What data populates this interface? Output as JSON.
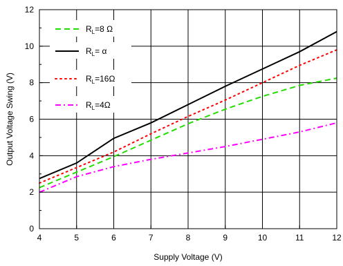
{
  "chart_data": {
    "type": "line",
    "xlabel": "Supply Voltage (V)",
    "ylabel": "Output Voltage Swing (V)",
    "xlim": [
      4,
      12
    ],
    "ylim": [
      0,
      12
    ],
    "xticks": [
      4,
      5,
      6,
      7,
      8,
      9,
      10,
      11,
      12
    ],
    "yticks": [
      0,
      2,
      4,
      6,
      8,
      10,
      12
    ],
    "grid": true,
    "legend_position": "top-left",
    "series": [
      {
        "name": "R_L=8 Ω",
        "label_prefix": "R",
        "label_sub": "L",
        "label_suffix": "=8 Ω",
        "color": "#22dd00",
        "dash": "dashed",
        "x": [
          4,
          5,
          6,
          7,
          8,
          9,
          10,
          11,
          12
        ],
        "y": [
          2.25,
          3.1,
          3.95,
          4.85,
          5.75,
          6.55,
          7.25,
          7.85,
          8.25
        ]
      },
      {
        "name": "R_L= α",
        "label_prefix": "R",
        "label_sub": "L",
        "label_suffix": "= α",
        "color": "#000000",
        "dash": "solid",
        "x": [
          4,
          5,
          6,
          7,
          8,
          9,
          10,
          11,
          12
        ],
        "y": [
          2.75,
          3.6,
          4.95,
          5.8,
          6.8,
          7.8,
          8.75,
          9.7,
          10.8
        ]
      },
      {
        "name": "R_L=16Ω",
        "label_prefix": "R",
        "label_sub": "L",
        "label_suffix": "=16Ω",
        "color": "#ff0000",
        "dash": "dotted",
        "x": [
          4,
          5,
          6,
          7,
          8,
          9,
          10,
          11,
          12
        ],
        "y": [
          2.5,
          3.35,
          4.2,
          5.2,
          6.15,
          7.05,
          8.0,
          8.95,
          9.8
        ]
      },
      {
        "name": "R_L=4Ω",
        "label_prefix": "R",
        "label_sub": "L",
        "label_suffix": "=4Ω",
        "color": "#ff00ff",
        "dash": "dashdot",
        "x": [
          4,
          5,
          6,
          7,
          8,
          9,
          10,
          11,
          12
        ],
        "y": [
          2.0,
          2.85,
          3.4,
          3.8,
          4.15,
          4.5,
          4.9,
          5.3,
          5.8
        ]
      }
    ]
  }
}
